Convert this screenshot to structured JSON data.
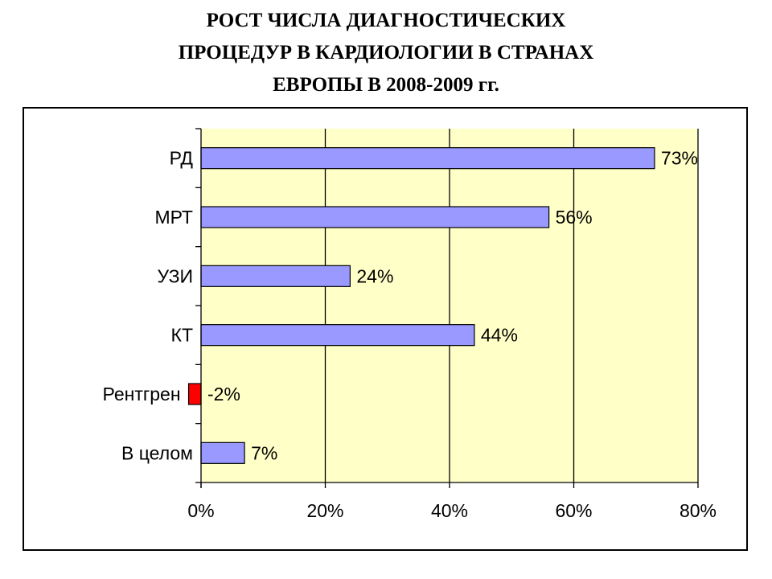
{
  "title": {
    "lines": [
      "РОСТ ЧИСЛА ДИАГНОСТИЧЕСКИХ",
      "ПРОЦЕДУР В КАРДИОЛОГИИ В СТРАНАХ",
      "ЕВРОПЫ В 2008-2009 гг."
    ]
  },
  "chart_data": {
    "type": "bar",
    "orientation": "horizontal",
    "categories": [
      "РД",
      "МРТ",
      "УЗИ",
      "КТ",
      "Рентгрен",
      "В целом"
    ],
    "values": [
      73,
      56,
      24,
      44,
      -2,
      7
    ],
    "value_labels": [
      "73%",
      "56%",
      "24%",
      "44%",
      "-2%",
      "7%"
    ],
    "bar_colors": [
      "#9999ff",
      "#9999ff",
      "#9999ff",
      "#9999ff",
      "#ff0000",
      "#9999ff"
    ],
    "xlim": [
      0,
      80
    ],
    "x_ticks": [
      0,
      20,
      40,
      60,
      80
    ],
    "x_tick_labels": [
      "0%",
      "20%",
      "40%",
      "60%",
      "80%"
    ],
    "grid": true,
    "plot_background": "#ffffc8",
    "title": "",
    "xlabel": "",
    "ylabel": ""
  }
}
